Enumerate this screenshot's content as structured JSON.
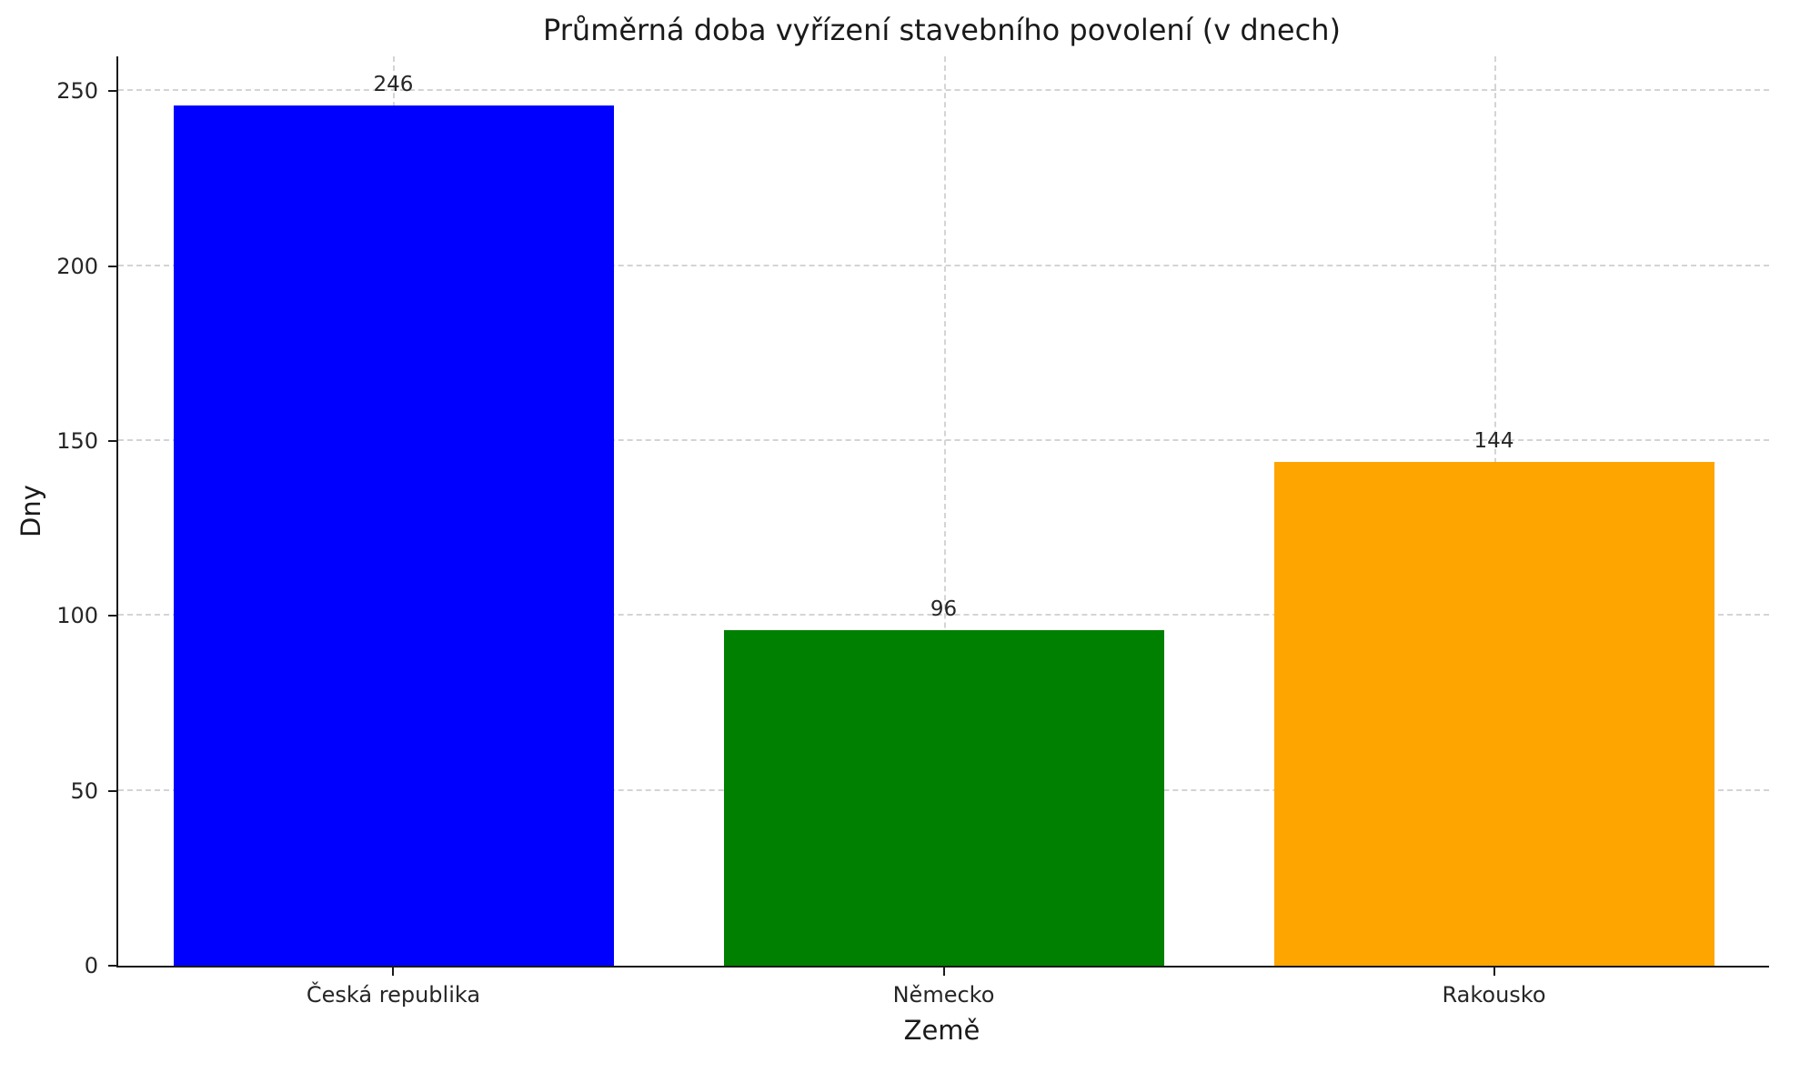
{
  "chart_data": {
    "type": "bar",
    "title": "Průměrná doba vyřízení stavebního povolení (v dnech)",
    "xlabel": "Země",
    "ylabel": "Dny",
    "categories": [
      "Česká republika",
      "Německo",
      "Rakousko"
    ],
    "values": [
      246,
      96,
      144
    ],
    "bar_colors": [
      "#0000ff",
      "#008000",
      "#ffa500"
    ],
    "yticks": [
      0,
      50,
      100,
      150,
      200,
      250
    ],
    "ylim": [
      0,
      260
    ],
    "grid": "dashed",
    "legend": "none",
    "background": "#ffffff"
  }
}
